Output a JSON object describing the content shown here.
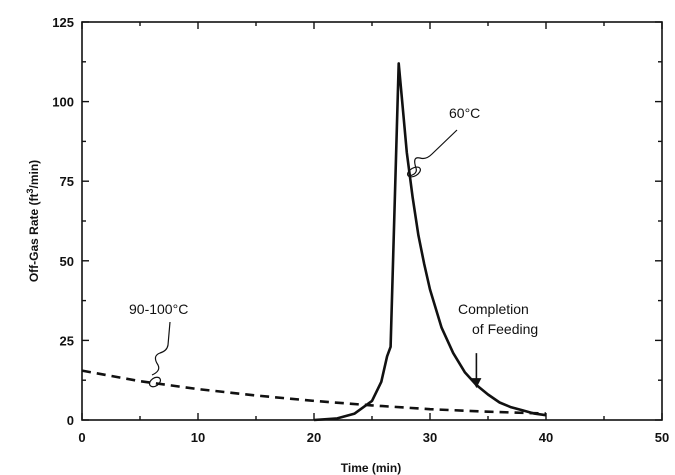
{
  "chart_data": {
    "type": "line",
    "title": "",
    "xlabel": "Time (min)",
    "ylabel": "Off-Gas Rate (ft³/min)",
    "ylabel_prefix": "Off-Gas Rate (ft",
    "ylabel_sup": "3",
    "ylabel_suffix": "/min)",
    "xlim": [
      0,
      50
    ],
    "ylim": [
      0,
      125
    ],
    "xticks": [
      "0",
      "10",
      "20",
      "30",
      "40",
      "50"
    ],
    "yticks": [
      "0",
      "25",
      "50",
      "75",
      "100",
      "125"
    ],
    "grid": false,
    "series": [
      {
        "label": "60°C",
        "style": "solid",
        "x": [
          20,
          22,
          23.5,
          25,
          25.8,
          26.3,
          26.6,
          27.3,
          27.6,
          28,
          28.5,
          29,
          29.5,
          30,
          31,
          32,
          33,
          34,
          35,
          36,
          37,
          38,
          39,
          40
        ],
        "y": [
          0,
          0.5,
          2,
          6,
          12,
          20,
          23,
          112,
          100,
          84,
          70,
          58,
          49,
          41,
          29,
          21,
          15,
          11,
          8,
          5.5,
          4,
          3,
          2,
          1.5
        ]
      },
      {
        "label": "90-100°C",
        "style": "dashed",
        "x": [
          0,
          5,
          10,
          15,
          20,
          25,
          30,
          35,
          40
        ],
        "y": [
          15.5,
          12.2,
          9.7,
          7.7,
          6,
          4.6,
          3.4,
          2.6,
          2
        ]
      }
    ],
    "annotations": [
      {
        "text": "60°C",
        "x": 32.5,
        "y": 93
      },
      {
        "text": "90-100°C",
        "x": 4,
        "y": 33
      },
      {
        "text": "Completion",
        "x": 33,
        "y": 33
      },
      {
        "text": "of Feeding",
        "x": 33,
        "y": 26
      }
    ],
    "arrow": {
      "label": "Completion of Feeding",
      "x": 34,
      "y_from": 21,
      "y_to": 10
    }
  }
}
